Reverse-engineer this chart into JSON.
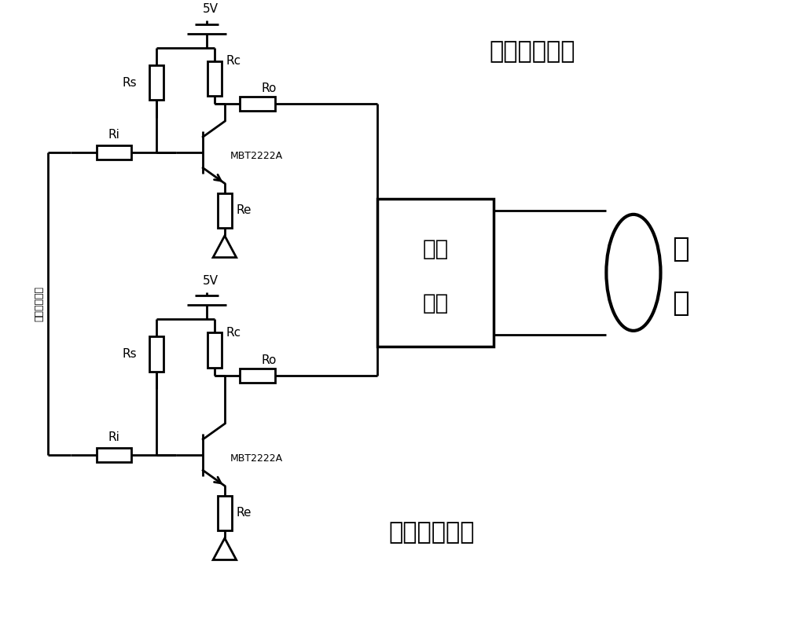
{
  "bg_color": "#ffffff",
  "line_color": "#000000",
  "lw": 2.0,
  "title_top": "前置放大電路",
  "title_bottom": "前置放大電路",
  "label_5v": "5V",
  "label_Rs": "Rs",
  "label_Ri": "Ri",
  "label_Rc": "Rc",
  "label_Ro": "Ro",
  "label_Re": "Re",
  "label_transistor": "MBT2222A",
  "label_match_1": "匹配",
  "label_match_2": "網絡",
  "label_antenna_1": "天",
  "label_antenna_2": "線",
  "label_input": "差分信號輸入"
}
